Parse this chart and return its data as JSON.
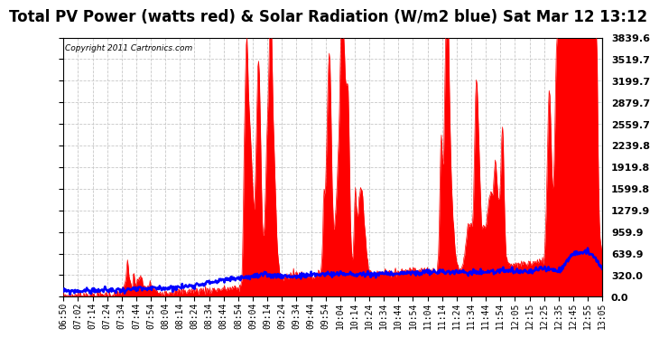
{
  "title": "Total PV Power (watts red) & Solar Radiation (W/m2 blue) Sat Mar 12 13:12",
  "copyright_text": "Copyright 2011 Cartronics.com",
  "background_color": "#ffffff",
  "plot_bg_color": "#ffffff",
  "grid_color": "#c8c8c8",
  "ylim": [
    0.0,
    3839.6
  ],
  "yticks": [
    0.0,
    320.0,
    639.9,
    959.9,
    1279.9,
    1599.8,
    1919.8,
    2239.8,
    2559.7,
    2879.7,
    3199.7,
    3519.7,
    3839.6
  ],
  "xtick_labels": [
    "06:50",
    "07:02",
    "07:14",
    "07:24",
    "07:34",
    "07:44",
    "07:54",
    "08:04",
    "08:14",
    "08:24",
    "08:34",
    "08:44",
    "08:54",
    "09:04",
    "09:14",
    "09:24",
    "09:34",
    "09:44",
    "09:54",
    "10:04",
    "10:14",
    "10:24",
    "10:34",
    "10:44",
    "10:54",
    "11:04",
    "11:14",
    "11:24",
    "11:34",
    "11:44",
    "11:54",
    "12:05",
    "12:15",
    "12:25",
    "12:35",
    "12:45",
    "12:55",
    "13:05"
  ],
  "pv_color": "#ff0000",
  "solar_color": "#0000ff",
  "title_fontsize": 12,
  "tick_fontsize": 7,
  "ylabel_right_fontsize": 8
}
